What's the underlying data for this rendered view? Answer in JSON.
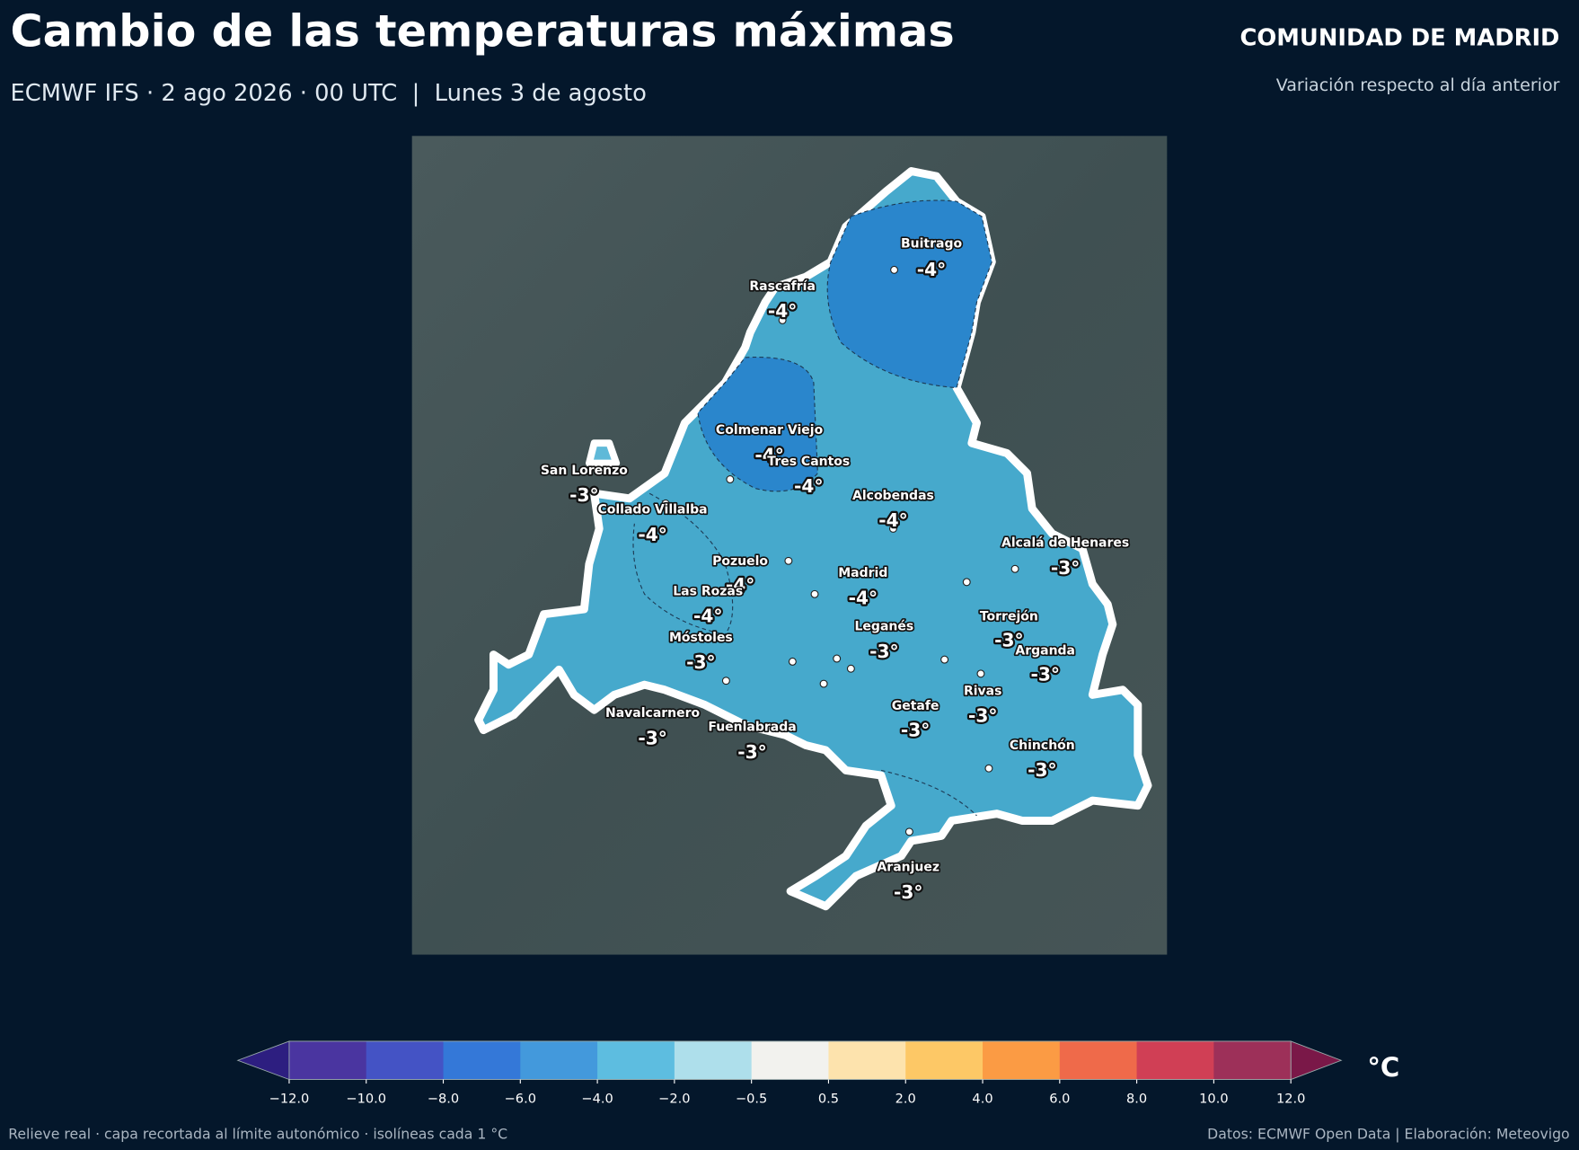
{
  "header": {
    "title": "Cambio de las temperaturas máximas",
    "subtitle": "ECMWF IFS · 2 ago 2026 · 00 UTC  |  Lunes 3 de agosto",
    "region": "COMUNIDAD DE MADRID",
    "note": "Variación respecto al día anterior"
  },
  "map": {
    "cities": [
      {
        "name": "Buitrago",
        "value": -4,
        "value_label": "-4°"
      },
      {
        "name": "Rascafría",
        "value": -4,
        "value_label": "-4°"
      },
      {
        "name": "Colmenar Viejo",
        "value": -4,
        "value_label": "-4°"
      },
      {
        "name": "Tres Cantos",
        "value": -4,
        "value_label": "-4°"
      },
      {
        "name": "San Lorenzo",
        "value": -3,
        "value_label": "-3°"
      },
      {
        "name": "Alcobendas",
        "value": -4,
        "value_label": "-4°"
      },
      {
        "name": "Collado Villalba",
        "value": -4,
        "value_label": "-4°"
      },
      {
        "name": "Alcalá de Henares",
        "value": -3,
        "value_label": "-3°"
      },
      {
        "name": "Pozuelo",
        "value": -4,
        "value_label": "-4°"
      },
      {
        "name": "Madrid",
        "value": -4,
        "value_label": "-4°"
      },
      {
        "name": "Las Rozas",
        "value": -4,
        "value_label": "-4°"
      },
      {
        "name": "Torrejón",
        "value": -3,
        "value_label": "-3°"
      },
      {
        "name": "Leganés",
        "value": -3,
        "value_label": "-3°"
      },
      {
        "name": "Móstoles",
        "value": -3,
        "value_label": "-3°"
      },
      {
        "name": "Arganda",
        "value": -3,
        "value_label": "-3°"
      },
      {
        "name": "Rivas",
        "value": -3,
        "value_label": "-3°"
      },
      {
        "name": "Getafe",
        "value": -3,
        "value_label": "-3°"
      },
      {
        "name": "Navalcarnero",
        "value": -3,
        "value_label": "-3°"
      },
      {
        "name": "Fuenlabrada",
        "value": -3,
        "value_label": "-3°"
      },
      {
        "name": "Chinchón",
        "value": -3,
        "value_label": "-3°"
      },
      {
        "name": "Aranjuez",
        "value": -3,
        "value_label": "-3°"
      }
    ]
  },
  "colorbar": {
    "unit": "°C",
    "ticks": [
      {
        "value": -12,
        "label": "−12.0"
      },
      {
        "value": -10,
        "label": "−10.0"
      },
      {
        "value": -8,
        "label": "−8.0"
      },
      {
        "value": -6,
        "label": "−6.0"
      },
      {
        "value": -4,
        "label": "−4.0"
      },
      {
        "value": -2,
        "label": "−2.0"
      },
      {
        "value": -0.5,
        "label": "−0.5"
      },
      {
        "value": 0.5,
        "label": "0.5"
      },
      {
        "value": 2,
        "label": "2.0"
      },
      {
        "value": 4,
        "label": "4.0"
      },
      {
        "value": 6,
        "label": "6.0"
      },
      {
        "value": 8,
        "label": "8.0"
      },
      {
        "value": 10,
        "label": "10.0"
      },
      {
        "value": 12,
        "label": "12.0"
      }
    ],
    "colors": [
      "#4a35a0",
      "#4453c5",
      "#3478d8",
      "#4399dc",
      "#5dbde0",
      "#aedfeb",
      "#f2f2ee",
      "#fde3ad",
      "#fdc866",
      "#fb9b44",
      "#ef6a4a",
      "#d03f55",
      "#9d3059"
    ],
    "under_color": "#2d1e80",
    "over_color": "#7a1848"
  },
  "footer": {
    "left": "Relieve real · capa recortada al límite autonómico · isolíneas cada 1 °C",
    "right": "Datos: ECMWF Open Data | Elaboración: Meteovigo"
  }
}
